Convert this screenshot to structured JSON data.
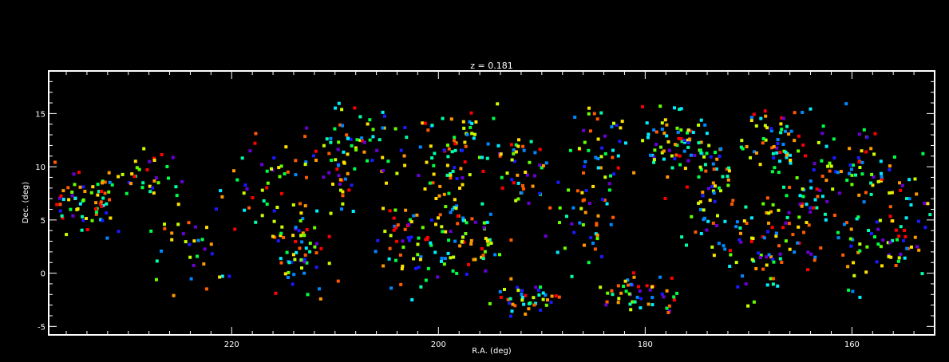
{
  "chart_data": {
    "type": "scatter",
    "title": "z = 0.181",
    "xlabel": "R.A. (deg)",
    "ylabel": "Dec. (deg)",
    "xlim": [
      237.7,
      152.0
    ],
    "ylim": [
      -5.8,
      19.0
    ],
    "x_reversed": true,
    "xticks_major": [
      220,
      200,
      180,
      160
    ],
    "yticks_major": [
      -5,
      0,
      5,
      10,
      15
    ],
    "xticks_minor_step": 2,
    "yticks_minor_step": 1,
    "grid": false,
    "marker": "square",
    "palette": [
      "#ff0000",
      "#ff5a00",
      "#ff9900",
      "#ffe000",
      "#c8ff00",
      "#66ff00",
      "#00ff44",
      "#00ffaa",
      "#00eeff",
      "#0088ff",
      "#1a1aff",
      "#6a00d8"
    ],
    "regions": [
      {
        "ra": 234.0,
        "dec": 6.5,
        "spread_ra": 3.0,
        "spread_dec": 2.5,
        "n": 70
      },
      {
        "ra": 228.5,
        "dec": 9.0,
        "spread_ra": 2.5,
        "spread_dec": 2.0,
        "n": 30
      },
      {
        "ra": 223.5,
        "dec": 2.0,
        "spread_ra": 3.0,
        "spread_dec": 4.0,
        "n": 35
      },
      {
        "ra": 217.5,
        "dec": 8.0,
        "spread_ra": 3.0,
        "spread_dec": 4.5,
        "n": 40
      },
      {
        "ra": 213.0,
        "dec": 2.5,
        "spread_ra": 2.5,
        "spread_dec": 3.5,
        "n": 60
      },
      {
        "ra": 210.0,
        "dec": 10.0,
        "spread_ra": 2.5,
        "spread_dec": 4.0,
        "n": 55
      },
      {
        "ra": 205.5,
        "dec": 12.0,
        "spread_ra": 2.5,
        "spread_dec": 3.0,
        "n": 35
      },
      {
        "ra": 202.5,
        "dec": 2.5,
        "spread_ra": 3.0,
        "spread_dec": 3.5,
        "n": 60
      },
      {
        "ra": 199.5,
        "dec": 8.0,
        "spread_ra": 3.0,
        "spread_dec": 4.0,
        "n": 40
      },
      {
        "ra": 197.0,
        "dec": 3.0,
        "spread_ra": 3.0,
        "spread_dec": 3.0,
        "n": 55
      },
      {
        "ra": 198.0,
        "dec": 13.0,
        "spread_ra": 3.0,
        "spread_dec": 2.0,
        "n": 40
      },
      {
        "ra": 192.5,
        "dec": 10.0,
        "spread_ra": 3.0,
        "spread_dec": 3.0,
        "n": 45
      },
      {
        "ra": 191.0,
        "dec": -2.5,
        "spread_ra": 3.0,
        "spread_dec": 1.2,
        "n": 40
      },
      {
        "ra": 186.0,
        "dec": 5.0,
        "spread_ra": 3.0,
        "spread_dec": 4.0,
        "n": 45
      },
      {
        "ra": 184.0,
        "dec": 12.0,
        "spread_ra": 2.5,
        "spread_dec": 3.0,
        "n": 40
      },
      {
        "ra": 180.5,
        "dec": -2.0,
        "spread_ra": 3.0,
        "spread_dec": 1.5,
        "n": 50
      },
      {
        "ra": 177.0,
        "dec": 12.5,
        "spread_ra": 2.5,
        "spread_dec": 2.5,
        "n": 65
      },
      {
        "ra": 174.0,
        "dec": 8.0,
        "spread_ra": 3.0,
        "spread_dec": 5.0,
        "n": 65
      },
      {
        "ra": 170.0,
        "dec": 2.0,
        "spread_ra": 3.0,
        "spread_dec": 3.5,
        "n": 55
      },
      {
        "ra": 167.5,
        "dec": 12.5,
        "spread_ra": 3.0,
        "spread_dec": 2.5,
        "n": 60
      },
      {
        "ra": 165.0,
        "dec": 6.0,
        "spread_ra": 3.0,
        "spread_dec": 4.5,
        "n": 60
      },
      {
        "ra": 160.0,
        "dec": 10.5,
        "spread_ra": 3.0,
        "spread_dec": 3.5,
        "n": 55
      },
      {
        "ra": 158.0,
        "dec": 2.5,
        "spread_ra": 3.0,
        "spread_dec": 3.5,
        "n": 45
      },
      {
        "ra": 154.5,
        "dec": 5.5,
        "spread_ra": 2.0,
        "spread_dec": 4.5,
        "n": 40
      }
    ]
  }
}
